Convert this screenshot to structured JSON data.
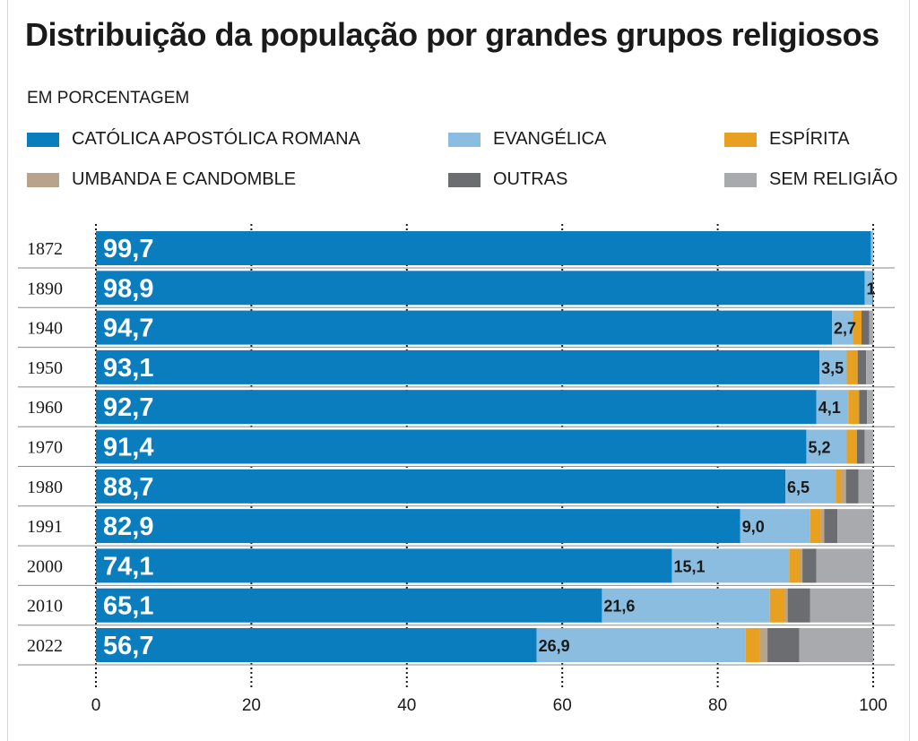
{
  "title": "Distribuição da população por grandes grupos religiosos",
  "subtitle": "EM PORCENTAGEM",
  "legend": [
    {
      "label": "CATÓLICA APOSTÓLICA ROMANA",
      "color": "#0a7dbf"
    },
    {
      "label": "EVANGÉLICA",
      "color": "#8bbde0"
    },
    {
      "label": "ESPÍRITA",
      "color": "#e8a020"
    },
    {
      "label": "UMBANDA E CANDOMBLE",
      "color": "#b8a48a"
    },
    {
      "label": "OUTRAS",
      "color": "#6b6d70"
    },
    {
      "label": "SEM RELIGIÃO",
      "color": "#a8aaad"
    }
  ],
  "chart_data": {
    "type": "bar",
    "orientation": "horizontal",
    "stacked": true,
    "title": "Distribuição da população por grandes grupos religiosos",
    "subtitle": "EM PORCENTAGEM",
    "xlim": [
      0,
      100
    ],
    "x_ticks": [
      "0",
      "20",
      "40",
      "60",
      "80",
      "100"
    ],
    "categories": [
      "1872",
      "1890",
      "1940",
      "1950",
      "1960",
      "1970",
      "1980",
      "1991",
      "2000",
      "2010",
      "2022"
    ],
    "series": [
      {
        "name": "CATÓLICA APOSTÓLICA ROMANA",
        "color": "#0a7dbf",
        "values": [
          99.7,
          98.9,
          94.7,
          93.1,
          92.7,
          91.4,
          88.7,
          82.9,
          74.1,
          65.1,
          56.7
        ],
        "labels": [
          "99,7",
          "98,9",
          "94,7",
          "93,1",
          "92,7",
          "91,4",
          "88,7",
          "82,9",
          "74,1",
          "65,1",
          "56,7"
        ]
      },
      {
        "name": "EVANGÉLICA",
        "color": "#8bbde0",
        "values": [
          0.3,
          1.0,
          2.7,
          3.5,
          4.1,
          5.2,
          6.5,
          9.0,
          15.1,
          21.6,
          26.9
        ],
        "labels": [
          "",
          "1",
          "2,7",
          "3,5",
          "4,1",
          "5,2",
          "6,5",
          "9,0",
          "15,1",
          "21,6",
          "26,9"
        ]
      },
      {
        "name": "ESPÍRITA",
        "color": "#e8a020",
        "values": [
          0,
          0,
          1.1,
          1.4,
          1.4,
          1.3,
          0.7,
          1.4,
          1.4,
          2.0,
          1.8
        ]
      },
      {
        "name": "UMBANDA E CANDOMBLE",
        "color": "#b8a48a",
        "values": [
          0,
          0,
          0,
          0,
          0,
          0,
          0.6,
          0.4,
          0.3,
          0.3,
          1.0
        ]
      },
      {
        "name": "OUTRAS",
        "color": "#6b6d70",
        "values": [
          0,
          0.1,
          1.0,
          1.1,
          1.0,
          1.0,
          1.6,
          1.7,
          1.8,
          2.9,
          4.1
        ]
      },
      {
        "name": "SEM RELIGIÃO",
        "color": "#a8aaad",
        "values": [
          0,
          0,
          0.5,
          0.9,
          0.8,
          1.1,
          1.9,
          4.6,
          7.3,
          8.1,
          9.5
        ]
      }
    ],
    "grid": "dotted vertical at ticks",
    "legend_position": "top"
  }
}
